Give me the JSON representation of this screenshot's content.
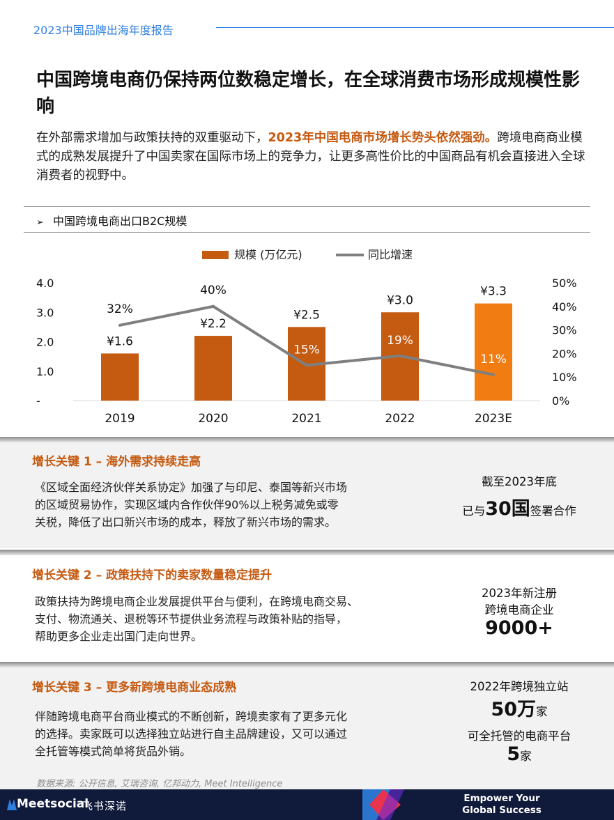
{
  "header": {
    "title": "2023中国品牌出海年度报告"
  },
  "main_title": "中国跨境电商仍保持两位数稳定增长，在全球消费市场形成规模性影响",
  "intro": {
    "part1": "在外部需求增加与政策扶持的双重驱动下，",
    "highlight": "2023年中国电商市场增长势头依然强劲。",
    "part2": "跨境电商商业模式的成熟发展提升了中国卖家在国际市场上的竞争力，让更多高性价比的中国商品有机会直接进入全球消费者的视野中。"
  },
  "section_label": "中国跨境电商出口B2C规模",
  "chart_data": {
    "type": "bar",
    "categories": [
      "2019",
      "2020",
      "2021",
      "2022",
      "2023E"
    ],
    "series": [
      {
        "name": "规模 (万亿元)",
        "type": "bar",
        "axis": "left",
        "values": [
          1.6,
          2.2,
          2.5,
          3.0,
          3.3
        ],
        "labels": [
          "¥1.6",
          "¥2.2",
          "¥2.5",
          "¥3.0",
          "¥3.3"
        ],
        "colors": [
          "#c55a11",
          "#c55a11",
          "#c55a11",
          "#c55a11",
          "#f07c12"
        ]
      },
      {
        "name": "同比增速",
        "type": "line",
        "axis": "right",
        "values": [
          32,
          40,
          15,
          19,
          11
        ],
        "labels": [
          "32%",
          "40%",
          "15%",
          "19%",
          "11%"
        ],
        "color": "#7f7f7f"
      }
    ],
    "y_left": {
      "ticks": [
        "-",
        "1.0",
        "2.0",
        "3.0",
        "4.0"
      ],
      "range": [
        0,
        4
      ]
    },
    "y_right": {
      "ticks": [
        "0%",
        "10%",
        "20%",
        "30%",
        "40%",
        "50%"
      ],
      "range": [
        0,
        50
      ]
    },
    "legend_position": "top-center"
  },
  "keys": [
    {
      "title": "增长关键 1 – 海外需求持续走高",
      "body": [
        "《区域全面经济伙伴关系协定》加强了与印尼、泰国等新兴市场",
        "的区域贸易协作，实现区域内合作伙伴90%以上税务减免或零",
        "关税，降低了出口新兴市场的成本，释放了新兴市场的需求。"
      ],
      "stat_line1": "截至2023年底",
      "stat_pre": "已与",
      "stat_big": "30国",
      "stat_post": "签署合作"
    },
    {
      "title": "增长关键 2 – 政策扶持下的卖家数量稳定提升",
      "body": [
        "政策扶持为跨境电商企业发展提供平台与便利，在跨境电商交易、",
        "支付、物流通关、退税等环节提供业务流程与政策补贴的指导，",
        "帮助更多企业走出国门走向世界。"
      ],
      "stat_line1": "2023年新注册",
      "stat_line2": "跨境电商企业",
      "stat_big": "9000+"
    },
    {
      "title": "增长关键 3 – 更多新跨境电商业态成熟",
      "body": [
        "伴随跨境电商平台商业模式的不断创新，跨境卖家有了更多元化",
        "的选择。卖家既可以选择独立站进行自主品牌建设，又可以通过",
        "全托管等模式简单将货品外销。"
      ],
      "stat_line1": "2022年跨境独立站",
      "stat_big1": "50万",
      "stat_unit1": "家",
      "stat_line2": "可全托管的电商平台",
      "stat_big2": "5",
      "stat_unit2": "家"
    }
  ],
  "source": "数据来源: 公开信息, 艾瑞咨询, 亿邦动力, Meet Intelligence",
  "footer": {
    "logo": "Meetsocial",
    "logo_cn": "飞书深诺",
    "tagline1": "Empower Your",
    "tagline2": "Global Success",
    "colors": {
      "navy": "#101a3a",
      "red": "#e8344e",
      "blue": "#2f7fe0"
    }
  }
}
